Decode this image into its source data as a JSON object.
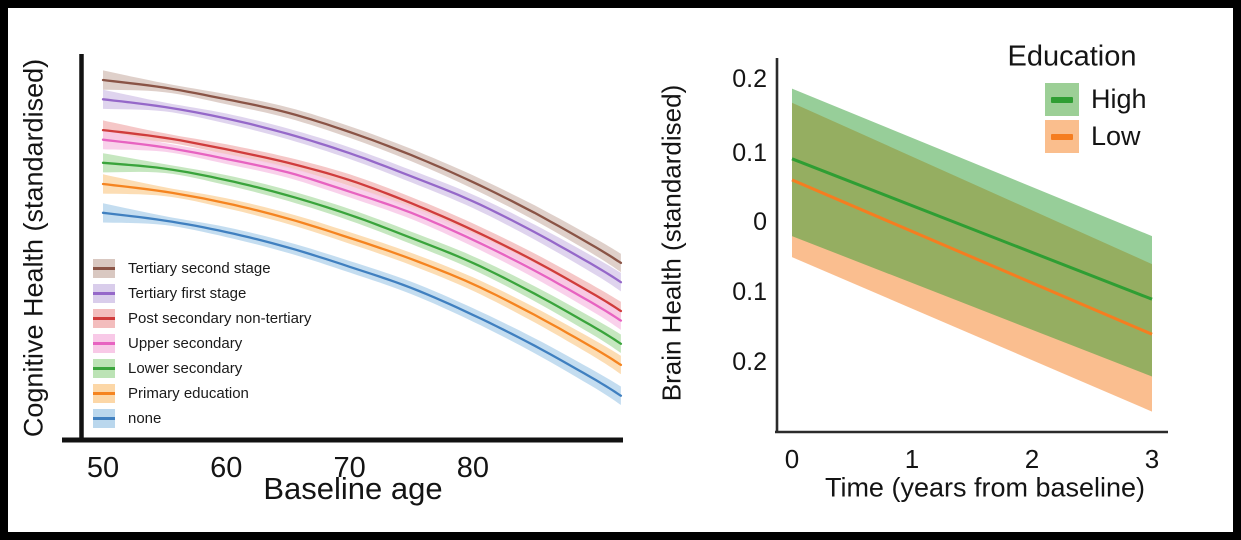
{
  "figure": {
    "frame_color": "#000000",
    "background": "#ffffff",
    "text_color": "#141414"
  },
  "chart_data": [
    {
      "type": "line",
      "panel": "left",
      "title": "",
      "xlabel": "Baseline age",
      "ylabel": "Cognitive Health (standardised)",
      "x_ticks": [
        "50",
        "60",
        "70",
        "80"
      ],
      "x_tick_values": [
        50,
        60,
        70,
        80
      ],
      "xlim": [
        48,
        92
      ],
      "ylim": [
        -1.0,
        1.0
      ],
      "grid": false,
      "legend_position": "inside-bottom-left",
      "x": [
        50,
        55,
        60,
        65,
        70,
        75,
        80,
        85,
        90,
        92
      ],
      "ci_halfwidth": [
        0.05,
        0.023,
        0.026,
        0.028,
        0.03,
        0.032,
        0.035,
        0.039,
        0.044,
        0.048
      ],
      "series": [
        {
          "name": "Tertiary second stage",
          "color": "#8a5446",
          "band_color": "#d9c8c1",
          "values": [
            0.87,
            0.83,
            0.77,
            0.7,
            0.6,
            0.48,
            0.34,
            0.18,
            0.0,
            -0.08
          ]
        },
        {
          "name": "Tertiary first stage",
          "color": "#9568c9",
          "band_color": "#d9cdeb",
          "values": [
            0.77,
            0.73,
            0.67,
            0.59,
            0.49,
            0.37,
            0.24,
            0.08,
            -0.1,
            -0.18
          ]
        },
        {
          "name": "Post secondary non-tertiary",
          "color": "#d03c3c",
          "band_color": "#f3bdbd",
          "values": [
            0.61,
            0.57,
            0.51,
            0.44,
            0.35,
            0.23,
            0.09,
            -0.07,
            -0.25,
            -0.33
          ]
        },
        {
          "name": "Upper secondary",
          "color": "#e763c1",
          "band_color": "#f8c9e7",
          "values": [
            0.56,
            0.52,
            0.46,
            0.39,
            0.29,
            0.18,
            0.04,
            -0.12,
            -0.3,
            -0.38
          ]
        },
        {
          "name": "Lower secondary",
          "color": "#3aa43c",
          "band_color": "#bce3b5",
          "values": [
            0.44,
            0.41,
            0.35,
            0.27,
            0.17,
            0.05,
            -0.08,
            -0.24,
            -0.42,
            -0.5
          ]
        },
        {
          "name": "Primary education",
          "color": "#f58420",
          "band_color": "#fcd7a7",
          "values": [
            0.33,
            0.29,
            0.23,
            0.15,
            0.05,
            -0.06,
            -0.19,
            -0.35,
            -0.53,
            -0.61
          ]
        },
        {
          "name": "none",
          "color": "#4080c0",
          "band_color": "#bad7ed",
          "values": [
            0.18,
            0.14,
            0.08,
            0.0,
            -0.1,
            -0.21,
            -0.35,
            -0.51,
            -0.69,
            -0.77
          ]
        }
      ]
    },
    {
      "type": "line",
      "panel": "right",
      "title": "",
      "xlabel": "Time (years from baseline)",
      "ylabel": "Brain Health (standardised)",
      "legend_title": "Education",
      "x_ticks": [
        "0",
        "1",
        "2",
        "3"
      ],
      "x_tick_values": [
        0,
        1,
        2,
        3
      ],
      "y_ticks": [
        "0.2",
        "0.1",
        "0",
        "0.1",
        "0.2"
      ],
      "y_tick_values": [
        0.2,
        0.1,
        0,
        -0.1,
        -0.2
      ],
      "xlim": [
        0,
        3
      ],
      "ylim": [
        -0.32,
        0.22
      ],
      "grid": false,
      "legend_position": "top-right",
      "x": [
        0,
        3
      ],
      "series": [
        {
          "name": "High",
          "color": "#2f9e33",
          "swatch_color": "#9ccf96",
          "values": [
            0.08,
            -0.12
          ],
          "ci_upper": [
            0.18,
            -0.03
          ],
          "ci_lower": [
            -0.03,
            -0.23
          ]
        },
        {
          "name": "Low",
          "color": "#f57d20",
          "swatch_color": "#fabe8d",
          "values": [
            0.05,
            -0.17
          ],
          "ci_upper": [
            0.16,
            -0.07
          ],
          "ci_lower": [
            -0.06,
            -0.28
          ]
        }
      ]
    }
  ]
}
